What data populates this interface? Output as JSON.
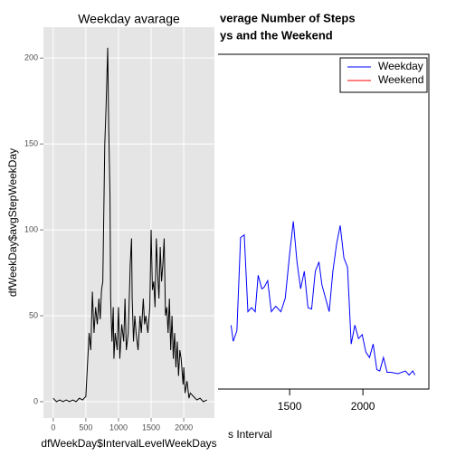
{
  "chart_data": [
    {
      "type": "line",
      "title": "Weekday avarage",
      "x_label": "dfWeekDay$IntervalLevelWeekDays",
      "y_label": "dfWeekDay$avgStepWeekDay",
      "x": [
        0,
        50,
        100,
        150,
        200,
        250,
        300,
        350,
        400,
        450,
        500,
        550,
        575,
        600,
        625,
        650,
        675,
        700,
        720,
        740,
        760,
        790,
        810,
        835,
        850,
        870,
        880,
        900,
        920,
        930,
        950,
        980,
        1000,
        1020,
        1050,
        1080,
        1100,
        1120,
        1150,
        1180,
        1200,
        1210,
        1230,
        1250,
        1270,
        1300,
        1330,
        1350,
        1380,
        1400,
        1420,
        1450,
        1480,
        1500,
        1520,
        1540,
        1560,
        1580,
        1600,
        1620,
        1640,
        1660,
        1680,
        1700,
        1720,
        1740,
        1760,
        1780,
        1800,
        1820,
        1840,
        1860,
        1880,
        1900,
        1920,
        1940,
        1960,
        1990,
        2000,
        2020,
        2050,
        2080,
        2100,
        2150,
        2200,
        2250,
        2300,
        2355
      ],
      "series": [
        {
          "color": "#000000",
          "values": [
            2,
            0,
            1,
            0,
            1,
            0,
            1,
            0,
            2,
            1,
            3,
            40,
            30,
            64,
            40,
            55,
            45,
            60,
            48,
            65,
            70,
            150,
            172,
            206,
            160,
            120,
            60,
            35,
            55,
            25,
            40,
            30,
            55,
            25,
            45,
            35,
            60,
            30,
            40,
            80,
            95,
            60,
            35,
            50,
            40,
            30,
            50,
            40,
            60,
            45,
            50,
            40,
            55,
            100,
            65,
            70,
            55,
            95,
            75,
            60,
            90,
            70,
            80,
            95,
            50,
            55,
            40,
            60,
            30,
            50,
            25,
            40,
            20,
            35,
            15,
            30,
            25,
            10,
            20,
            5,
            12,
            2,
            5,
            3,
            1,
            2,
            0,
            1
          ]
        }
      ],
      "xlim": [
        -150,
        2470
      ],
      "xticks": [
        0,
        500,
        1000,
        1500,
        2000
      ],
      "ylim": [
        -9.5,
        218
      ],
      "yticks": [
        0,
        50,
        100,
        150,
        200
      ],
      "grid": true
    },
    {
      "type": "line",
      "title_lines": [
        "verage Number of Steps",
        "ys and the Weekend"
      ],
      "x_label": "s Interval",
      "x": [
        1100,
        1115,
        1140,
        1165,
        1190,
        1215,
        1240,
        1265,
        1285,
        1310,
        1325,
        1350,
        1375,
        1405,
        1440,
        1470,
        1500,
        1525,
        1550,
        1575,
        1600,
        1625,
        1650,
        1675,
        1700,
        1720,
        1745,
        1770,
        1795,
        1820,
        1845,
        1870,
        1895,
        1920,
        1945,
        1970,
        1995,
        2020,
        2045,
        2070,
        2095,
        2115,
        2140,
        2165,
        2190,
        2240,
        2290,
        2315,
        2340,
        2355
      ],
      "series": [
        {
          "name": "Weekday",
          "color": "#0000ff",
          "values": [
            39,
            27,
            35,
            104,
            106,
            49,
            52,
            49,
            76,
            66,
            67,
            72,
            49,
            53,
            49,
            59,
            92,
            116,
            86,
            66,
            79,
            52,
            51,
            79,
            86,
            69,
            59,
            49,
            79,
            99,
            113,
            89,
            82,
            25,
            39,
            29,
            32,
            19,
            15,
            25,
            6,
            5,
            15,
            4,
            4,
            3,
            5,
            2,
            5,
            2
          ]
        }
      ],
      "legend": [
        {
          "name": "Weekday",
          "color": "#0000ff"
        },
        {
          "name": "Weekend",
          "color": "#ff0000"
        }
      ],
      "legend_position": "top-right",
      "xlim": [
        -94,
        2450
      ],
      "xticks": [
        1500,
        2000
      ],
      "ylim": [
        -8.4,
        240
      ]
    }
  ]
}
